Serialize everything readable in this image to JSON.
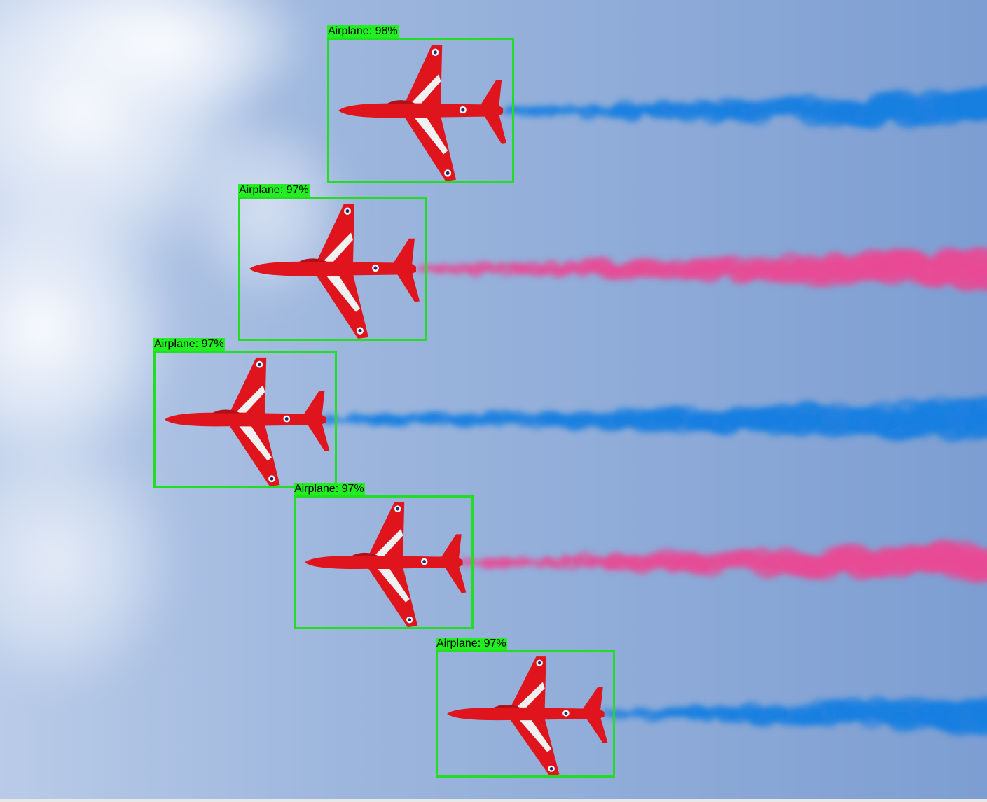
{
  "detections": [
    {
      "label": "Airplane: 98%",
      "class": "Airplane",
      "confidence": 0.98,
      "trail": "blue"
    },
    {
      "label": "Airplane: 97%",
      "class": "Airplane",
      "confidence": 0.97,
      "trail": "pink"
    },
    {
      "label": "Airplane: 97%",
      "class": "Airplane",
      "confidence": 0.97,
      "trail": "blue"
    },
    {
      "label": "Airplane: 97%",
      "class": "Airplane",
      "confidence": 0.97,
      "trail": "pink"
    },
    {
      "label": "Airplane: 97%",
      "class": "Airplane",
      "confidence": 0.97,
      "trail": "blue"
    }
  ],
  "colors": {
    "box": "#22dd22",
    "label_bg": "#22ee22",
    "aircraft": "#e0141c",
    "smoke_blue": "#1a7fe0",
    "smoke_pink": "#e84a95",
    "sky": "#8eabd6"
  }
}
